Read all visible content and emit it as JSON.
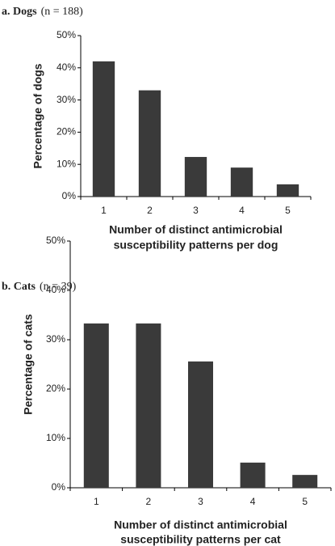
{
  "chart_data": [
    {
      "type": "bar",
      "title": "a. Dogs",
      "subtitle": "(n = 188)",
      "categories": [
        "1",
        "2",
        "3",
        "4",
        "5"
      ],
      "values": [
        42,
        33,
        12.3,
        9,
        3.8
      ],
      "color": "#3a3a3a",
      "ylim": [
        0,
        50
      ],
      "yticks": [
        {
          "value": 0,
          "label": "0%"
        },
        {
          "value": 10,
          "label": "10%"
        },
        {
          "value": 20,
          "label": "20%"
        },
        {
          "value": 30,
          "label": "30%"
        },
        {
          "value": 40,
          "label": "40%"
        },
        {
          "value": 50,
          "label": "50%"
        }
      ],
      "ylabel": "Percentage of dogs",
      "xlabel": [
        "Number of distinct antimicrobial",
        "susceptibility patterns per dog"
      ]
    },
    {
      "type": "bar",
      "title": "b. Cats",
      "subtitle": "(n = 39)",
      "categories": [
        "1",
        "2",
        "3",
        "4",
        "5"
      ],
      "values": [
        33.3,
        33.3,
        25.6,
        5.1,
        2.6
      ],
      "color": "#3a3a3a",
      "ylim": [
        0,
        50
      ],
      "yticks": [
        {
          "value": 0,
          "label": "0%"
        },
        {
          "value": 10,
          "label": "10%"
        },
        {
          "value": 20,
          "label": "20%"
        },
        {
          "value": 30,
          "label": "30%"
        },
        {
          "value": 40,
          "label": "40%"
        },
        {
          "value": 50,
          "label": "50%"
        }
      ],
      "ylabel": "Percentage of cats",
      "xlabel": [
        "Number of distinct antimicrobial",
        "susceptibility patterns per cat"
      ]
    }
  ]
}
